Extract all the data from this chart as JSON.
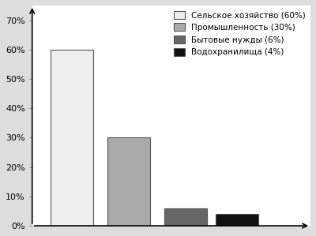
{
  "values": [
    60,
    30,
    6,
    4
  ],
  "colors": [
    "#eeeeee",
    "#aaaaaa",
    "#666666",
    "#111111"
  ],
  "legend_labels": [
    "Сельское хозяйство (60%)",
    "Промышленность (30%)",
    "Бытовые нужды (6%)",
    "Водохранилища (4%)"
  ],
  "yticks": [
    0,
    10,
    20,
    30,
    40,
    50,
    60,
    70
  ],
  "ytick_labels": [
    "0%",
    "10%",
    "20%",
    "30%",
    "40%",
    "50%",
    "60%",
    "70%"
  ],
  "ylim": [
    0,
    75
  ],
  "xlim": [
    0.3,
    5.2
  ],
  "bar_width": 0.75,
  "bar_edgecolor": "#555555",
  "x_positions": [
    1.0,
    2.0,
    3.0,
    3.9
  ],
  "background_color": "#ffffff",
  "figure_facecolor": "#dddddd",
  "legend_fontsize": 7.5,
  "tick_fontsize": 8
}
